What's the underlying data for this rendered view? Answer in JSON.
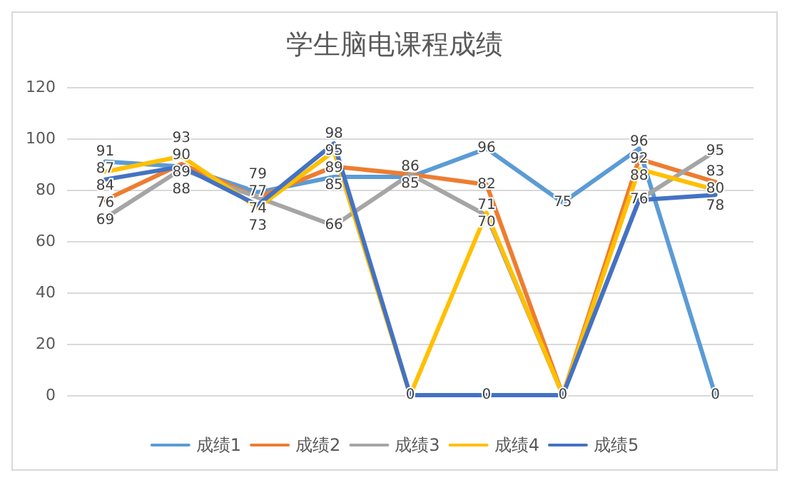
{
  "chart_data": {
    "type": "line",
    "title": "学生脑电课程成绩",
    "categories": [
      null,
      null,
      null,
      null,
      null,
      null,
      null,
      null,
      null
    ],
    "series": [
      {
        "name": "成绩1",
        "color": "#5b9bd5",
        "values": [
          91,
          89,
          79,
          85,
          85,
          96,
          75,
          96,
          0
        ],
        "value_labels": [
          "91",
          "89",
          "79",
          "85",
          "85",
          "96",
          "75",
          "96",
          "0"
        ]
      },
      {
        "name": "成绩2",
        "color": "#ed7d31",
        "values": [
          76,
          90,
          77,
          89,
          86,
          82,
          0,
          92,
          83
        ],
        "value_labels": [
          "76",
          "90",
          "77",
          "89",
          "86",
          "82",
          "0",
          "92",
          "83"
        ]
      },
      {
        "name": "成绩3",
        "color": "#a5a5a5",
        "values": [
          69,
          88,
          77,
          66,
          86,
          70,
          0,
          76,
          95
        ],
        "value_labels": [
          "69",
          "88",
          null,
          "66",
          null,
          "70",
          null,
          "76",
          "95"
        ]
      },
      {
        "name": "成绩4",
        "color": "#ffc000",
        "values": [
          87,
          93,
          73,
          95,
          0,
          71,
          0,
          88,
          80
        ],
        "value_labels": [
          "87",
          "93",
          "73",
          "95",
          "0",
          "71",
          null,
          "88",
          "80"
        ]
      },
      {
        "name": "成绩5",
        "color": "#4472c4",
        "values": [
          84,
          89,
          74,
          98,
          0,
          0,
          0,
          76,
          78
        ],
        "value_labels": [
          "84",
          null,
          "74",
          "98",
          null,
          "0",
          null,
          null,
          "78"
        ]
      }
    ],
    "ylim": [
      0,
      120
    ],
    "yticks": [
      0,
      20,
      40,
      60,
      80,
      100,
      120
    ],
    "grid": "y",
    "legend": "bottom",
    "marker": "none",
    "line_style": "solid"
  }
}
